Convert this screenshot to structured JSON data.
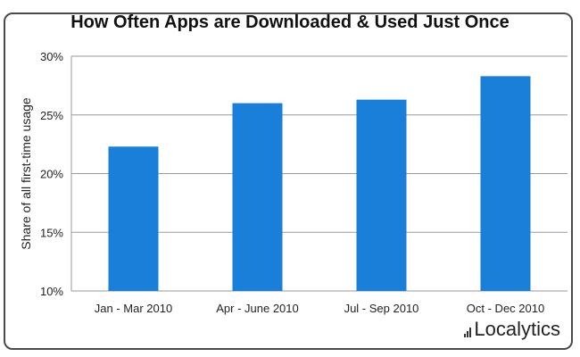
{
  "chart_data": {
    "type": "bar",
    "title": "How Often Apps are Downloaded & Used Just Once",
    "xlabel": "",
    "ylabel": "Share of all first-time usage",
    "categories": [
      "Jan - Mar 2010",
      "Apr - June 2010",
      "Jul - Sep 2010",
      "Oct - Dec 2010"
    ],
    "values": [
      22.3,
      26.0,
      26.3,
      28.3
    ],
    "ylim": [
      10,
      30
    ],
    "yticks": [
      10,
      15,
      20,
      25,
      30
    ],
    "ytick_labels": [
      "10%",
      "15%",
      "20%",
      "25%",
      "30%"
    ],
    "grid": true,
    "bar_color": "#1a7fd9"
  },
  "branding": {
    "logo_text": "Localytics"
  }
}
